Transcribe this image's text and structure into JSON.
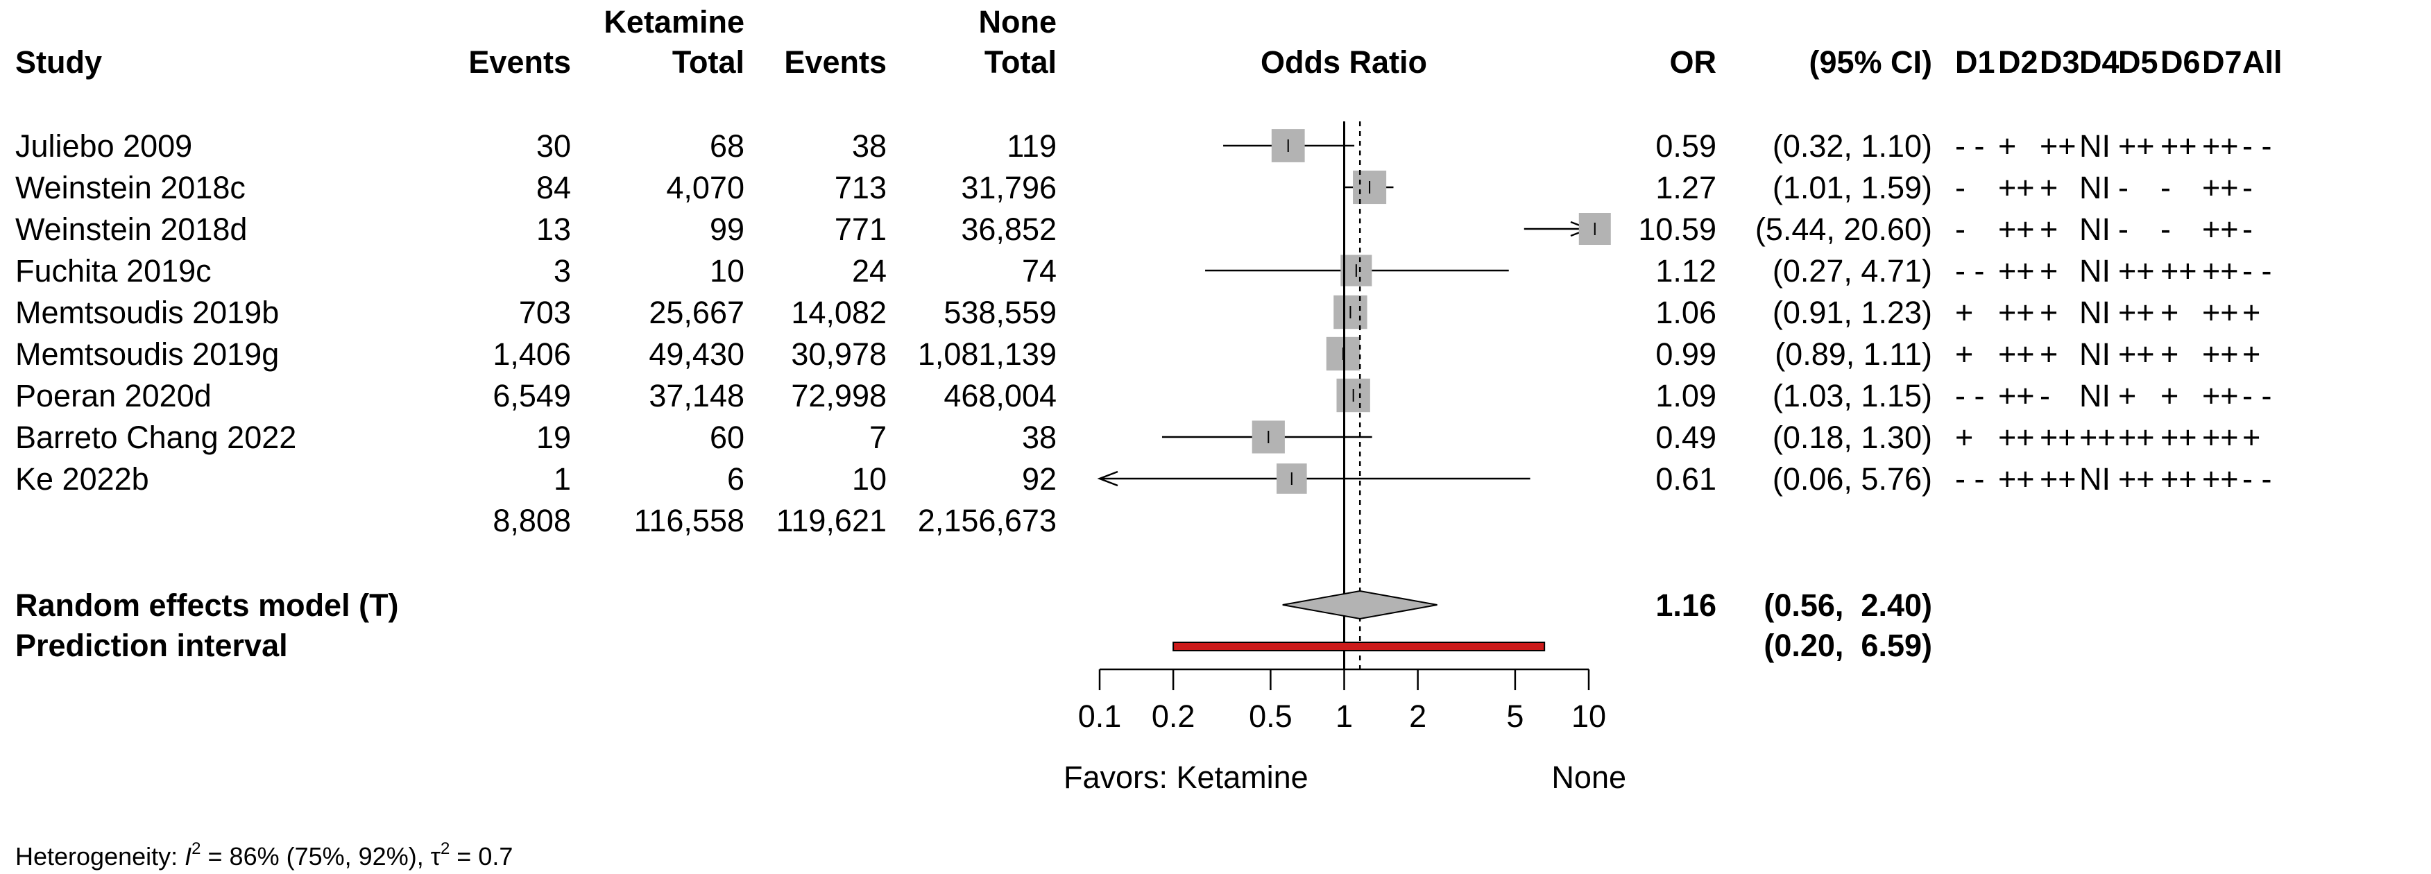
{
  "chart_data": {
    "type": "forest",
    "headers": {
      "group1": "Ketamine",
      "group2": "None",
      "study": "Study",
      "events": "Events",
      "total": "Total",
      "plot": "Odds Ratio",
      "or": "OR",
      "ci": "(95% CI)",
      "domains": [
        "D1",
        "D2",
        "D3",
        "D4",
        "D5",
        "D6",
        "D7",
        "All"
      ]
    },
    "studies": [
      {
        "name": "Juliebo 2009",
        "e1": "30",
        "n1": "68",
        "e2": "38",
        "n2": "119",
        "or": 0.59,
        "lo": 0.32,
        "hi": 1.1,
        "or_text": "0.59",
        "ci_text": "(0.32,  1.10)",
        "weight": 0.26,
        "rob": [
          "- -",
          "+",
          "++",
          "NI",
          "++",
          "++",
          "++",
          "- -"
        ]
      },
      {
        "name": "Weinstein 2018c",
        "e1": "84",
        "n1": "4,070",
        "e2": "713",
        "n2": "31,796",
        "or": 1.27,
        "lo": 1.01,
        "hi": 1.59,
        "or_text": "1.27",
        "ci_text": "(1.01,  1.59)",
        "weight": 0.27,
        "rob": [
          "-",
          "++",
          "+",
          "NI",
          "-",
          "-",
          "++",
          "-"
        ]
      },
      {
        "name": "Weinstein 2018d",
        "e1": "13",
        "n1": "99",
        "e2": "771",
        "n2": "36,852",
        "or": 10.59,
        "lo": 5.44,
        "hi": 20.6,
        "or_text": "10.59",
        "ci_text": "(5.44, 20.60)",
        "weight": 0.2,
        "rob": [
          "-",
          "++",
          "+",
          "NI",
          "-",
          "-",
          "++",
          "-"
        ]
      },
      {
        "name": "Fuchita 2019c",
        "e1": "3",
        "n1": "10",
        "e2": "24",
        "n2": "74",
        "or": 1.12,
        "lo": 0.27,
        "hi": 4.71,
        "or_text": "1.12",
        "ci_text": "(0.27,  4.71)",
        "weight": 0.17,
        "rob": [
          "- -",
          "++",
          "+",
          "NI",
          "++",
          "++",
          "++",
          "- -"
        ]
      },
      {
        "name": "Memtsoudis 2019b",
        "e1": "703",
        "n1": "25,667",
        "e2": "14,082",
        "n2": "538,559",
        "or": 1.06,
        "lo": 0.91,
        "hi": 1.23,
        "or_text": "1.06",
        "ci_text": "(0.91,  1.23)",
        "weight": 0.28,
        "rob": [
          "+",
          "++",
          "+",
          "NI",
          "++",
          "+",
          "++",
          "+"
        ]
      },
      {
        "name": "Memtsoudis 2019g",
        "e1": "1,406",
        "n1": "49,430",
        "e2": "30,978",
        "n2": "1,081,139",
        "or": 0.99,
        "lo": 0.89,
        "hi": 1.11,
        "or_text": "0.99",
        "ci_text": "(0.89,  1.11)",
        "weight": 0.28,
        "rob": [
          "+",
          "++",
          "+",
          "NI",
          "++",
          "+",
          "++",
          "+"
        ]
      },
      {
        "name": "Poeran 2020d",
        "e1": "6,549",
        "n1": "37,148",
        "e2": "72,998",
        "n2": "468,004",
        "or": 1.09,
        "lo": 1.03,
        "hi": 1.15,
        "or_text": "1.09",
        "ci_text": "(1.03,  1.15)",
        "weight": 0.28,
        "rob": [
          "- -",
          "++",
          "-",
          "NI",
          "+",
          "+",
          "++",
          "- -"
        ]
      },
      {
        "name": "Barreto Chang 2022",
        "e1": "19",
        "n1": "60",
        "e2": "7",
        "n2": "38",
        "or": 0.49,
        "lo": 0.18,
        "hi": 1.3,
        "or_text": "0.49",
        "ci_text": "(0.18,  1.30)",
        "weight": 0.24,
        "rob": [
          "+",
          "++",
          "++",
          "++",
          "++",
          "++",
          "++",
          "+"
        ]
      },
      {
        "name": "Ke 2022b",
        "e1": "1",
        "n1": "6",
        "e2": "10",
        "n2": "92",
        "or": 0.61,
        "lo": 0.06,
        "hi": 5.76,
        "or_text": "0.61",
        "ci_text": "(0.06,  5.76)",
        "weight": 0.12,
        "rob": [
          "- -",
          "++",
          "++",
          "NI",
          "++",
          "++",
          "++",
          "- -"
        ]
      }
    ],
    "totals": {
      "e1": "8,808",
      "n1": "116,558",
      "e2": "119,621",
      "n2": "2,156,673"
    },
    "random_effects": {
      "label": "Random effects model (T)",
      "or": 1.16,
      "lo": 0.56,
      "hi": 2.4,
      "or_text": "1.16",
      "ci_text": "(0.56,  2.40)"
    },
    "prediction_interval": {
      "label": "Prediction interval",
      "lo": 0.2,
      "hi": 6.59,
      "ci_text": "(0.20,  6.59)"
    },
    "x_axis": {
      "scale": "log",
      "range": [
        0.1,
        10
      ],
      "ticks": [
        0.1,
        0.2,
        0.5,
        1,
        2,
        5,
        10
      ],
      "tick_labels": [
        "0.1",
        "0.2",
        "0.5",
        "1",
        "2",
        "5",
        "10"
      ],
      "null_value": 1,
      "left_label": "Favors: Ketamine",
      "right_label": "None"
    },
    "heterogeneity": {
      "prefix": "Heterogeneity: ",
      "i2_symbol": "I",
      "i2_sup": "2",
      "i2_text": " = 86% (75%, 92%), ",
      "tau_symbol": "τ",
      "tau_sup": "2",
      "tau_text": " = 0.7"
    },
    "colors": {
      "box": "#b3b3b3",
      "diamond": "#b3b3b3",
      "prediction": "#cc1b1b",
      "line": "#000000"
    }
  }
}
